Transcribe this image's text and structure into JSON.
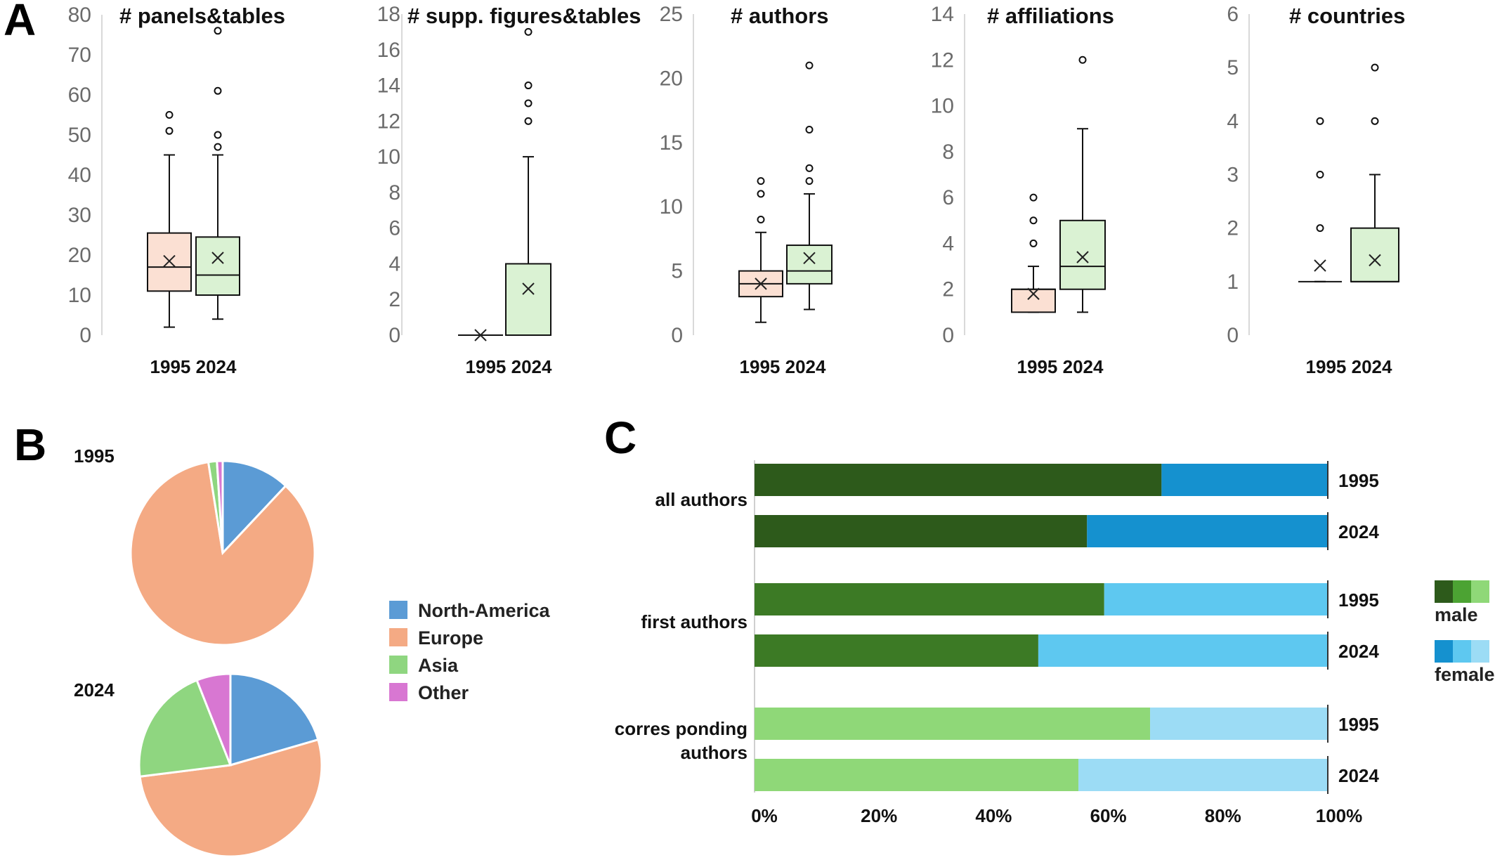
{
  "panels": {
    "a": "A",
    "b": "B",
    "c": "C"
  },
  "chart_data": [
    {
      "type": "box",
      "title": "# panels&tables",
      "categories": [
        "1995",
        "2024"
      ],
      "ylim": [
        0,
        80
      ],
      "yticks": [
        0,
        10,
        20,
        30,
        40,
        50,
        60,
        70,
        80
      ],
      "boxes": [
        {
          "category": "1995",
          "min": 2,
          "q1": 11,
          "median": 17,
          "q3": 25.5,
          "max": 45,
          "mean": 18.5,
          "outliers": [
            51,
            55
          ],
          "color": "#fbe0d3"
        },
        {
          "category": "2024",
          "min": 4,
          "q1": 10,
          "median": 15,
          "q3": 24.5,
          "max": 45,
          "mean": 19.3,
          "outliers": [
            47,
            50,
            61,
            76
          ],
          "color": "#daf2d3"
        }
      ]
    },
    {
      "type": "box",
      "title": "# supp. figures&tables",
      "categories": [
        "1995",
        "2024"
      ],
      "ylim": [
        0,
        18
      ],
      "yticks": [
        0,
        2,
        4,
        6,
        8,
        10,
        12,
        14,
        16,
        18
      ],
      "boxes": [
        {
          "category": "1995",
          "min": 0,
          "q1": 0,
          "median": 0,
          "q3": 0,
          "max": 0,
          "mean": 0,
          "outliers": [],
          "color": "#fbe0d3"
        },
        {
          "category": "2024",
          "min": 0,
          "q1": 0,
          "median": 0,
          "q3": 4,
          "max": 10,
          "mean": 2.6,
          "outliers": [
            12,
            13,
            14,
            17
          ],
          "color": "#daf2d3"
        }
      ]
    },
    {
      "type": "box",
      "title": "# authors",
      "categories": [
        "1995",
        "2024"
      ],
      "ylim": [
        0,
        25
      ],
      "yticks": [
        0,
        5,
        10,
        15,
        20,
        25
      ],
      "boxes": [
        {
          "category": "1995",
          "min": 1,
          "q1": 3,
          "median": 4,
          "q3": 5,
          "max": 8,
          "mean": 4,
          "outliers": [
            9,
            11,
            12
          ],
          "color": "#fbe0d3"
        },
        {
          "category": "2024",
          "min": 2,
          "q1": 4,
          "median": 5,
          "q3": 7,
          "max": 11,
          "mean": 6,
          "outliers": [
            12,
            13,
            16,
            21
          ],
          "color": "#daf2d3"
        }
      ]
    },
    {
      "type": "box",
      "title": "# affiliations",
      "categories": [
        "1995",
        "2024"
      ],
      "ylim": [
        0,
        14
      ],
      "yticks": [
        0,
        2,
        4,
        6,
        8,
        10,
        12,
        14
      ],
      "boxes": [
        {
          "category": "1995",
          "min": 1,
          "q1": 1,
          "median": 2,
          "q3": 2,
          "max": 3,
          "mean": 1.8,
          "outliers": [
            4,
            5,
            6
          ],
          "color": "#fbe0d3"
        },
        {
          "category": "2024",
          "min": 1,
          "q1": 2,
          "median": 3,
          "q3": 5,
          "max": 9,
          "mean": 3.4,
          "outliers": [
            12
          ],
          "color": "#daf2d3"
        }
      ]
    },
    {
      "type": "box",
      "title": "# countries",
      "categories": [
        "1995",
        "2024"
      ],
      "ylim": [
        0,
        6
      ],
      "yticks": [
        0,
        1,
        2,
        3,
        4,
        5,
        6
      ],
      "boxes": [
        {
          "category": "1995",
          "min": 1,
          "q1": 1,
          "median": 1,
          "q3": 1,
          "max": 1,
          "mean": 1.3,
          "outliers": [
            2,
            3,
            4
          ],
          "color": "#fbe0d3"
        },
        {
          "category": "2024",
          "min": 1,
          "q1": 1,
          "median": 1,
          "q3": 2,
          "max": 3,
          "mean": 1.4,
          "outliers": [
            4,
            5
          ],
          "color": "#daf2d3"
        }
      ]
    },
    {
      "type": "pie",
      "title": "1995",
      "categories": [
        "North-America",
        "Europe",
        "Asia",
        "Other"
      ],
      "values": [
        12,
        85.5,
        1.5,
        1
      ],
      "colors": [
        "#5b9bd5",
        "#f4aa84",
        "#8fd680",
        "#d877d2"
      ]
    },
    {
      "type": "pie",
      "title": "2024",
      "categories": [
        "North-America",
        "Europe",
        "Asia",
        "Other"
      ],
      "values": [
        20.5,
        52.5,
        21,
        6
      ],
      "colors": [
        "#5b9bd5",
        "#f4aa84",
        "#8fd680",
        "#d877d2"
      ]
    },
    {
      "type": "bar",
      "orientation": "horizontal",
      "stacked": true,
      "xlim": [
        0,
        100
      ],
      "xticks": [
        "0%",
        "20%",
        "40%",
        "60%",
        "80%",
        "100%"
      ],
      "groups": [
        {
          "label": [
            "all authors"
          ],
          "male_color": "#2d5a1b",
          "female_color": "#1591cf",
          "bars": [
            {
              "year": "1995",
              "male": 71,
              "female": 29
            },
            {
              "year": "2024",
              "male": 58,
              "female": 42
            }
          ]
        },
        {
          "label": [
            "first authors"
          ],
          "male_color": "#3c7a25",
          "female_color": "#5ec8f0",
          "bars": [
            {
              "year": "1995",
              "male": 61,
              "female": 39
            },
            {
              "year": "2024",
              "male": 49.5,
              "female": 50.5
            }
          ]
        },
        {
          "label": [
            "corres ponding",
            "authors"
          ],
          "male_color": "#8fd878",
          "female_color": "#9cdcf5",
          "bars": [
            {
              "year": "1995",
              "male": 69,
              "female": 31
            },
            {
              "year": "2024",
              "male": 56.5,
              "female": 43.5
            }
          ]
        }
      ],
      "legend": [
        {
          "label": "male",
          "colors": [
            "#2d5a1b",
            "#4ca333",
            "#8fd878"
          ]
        },
        {
          "label": "female",
          "colors": [
            "#1591cf",
            "#5ec8f0",
            "#9cdcf5"
          ]
        }
      ]
    }
  ]
}
